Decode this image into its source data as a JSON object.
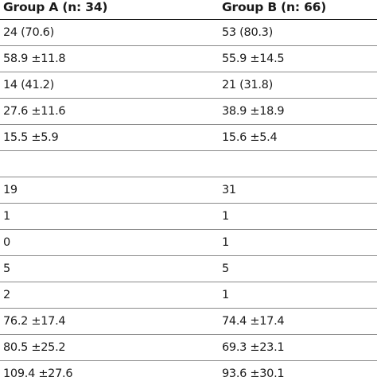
{
  "table": {
    "headers": [
      "Group A (n: 34)",
      "Group B (n: 66)"
    ],
    "rows": [
      [
        "24 (70.6)",
        "53 (80.3)"
      ],
      [
        "58.9 ±11.8",
        "55.9 ±14.5"
      ],
      [
        "14 (41.2)",
        "21 (31.8)"
      ],
      [
        "27.6 ±11.6",
        "38.9 ±18.9"
      ],
      [
        "15.5 ±5.9",
        "15.6 ±5.4"
      ],
      [
        "",
        ""
      ],
      [
        "19",
        "31"
      ],
      [
        "1",
        "1"
      ],
      [
        "0",
        "1"
      ],
      [
        "5",
        "5"
      ],
      [
        "2",
        "1"
      ],
      [
        "76.2 ±17.4",
        "74.4 ±17.4"
      ],
      [
        "80.5 ±25.2",
        "69.3 ±23.1"
      ],
      [
        "109.4 ±27.6",
        "93.6 ±30.1"
      ]
    ]
  }
}
